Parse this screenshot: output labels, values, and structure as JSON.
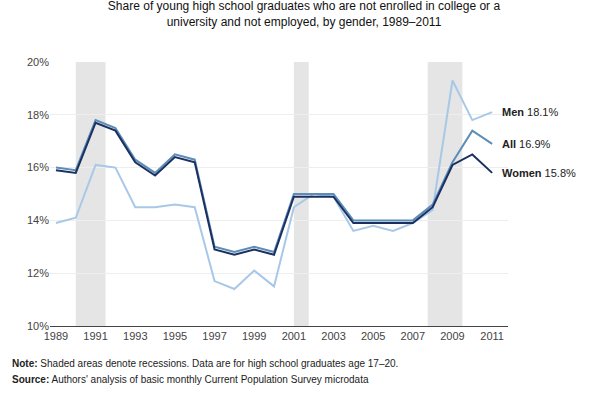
{
  "chart_data": {
    "type": "line",
    "title": "Share of young high school graduates who are not enrolled in college or a\nuniversity and not employed, by gender, 1989–2011",
    "x": [
      1989,
      1990,
      1991,
      1992,
      1993,
      1994,
      1995,
      1996,
      1997,
      1998,
      1999,
      2000,
      2001,
      2002,
      2003,
      2004,
      2005,
      2006,
      2007,
      2008,
      2009,
      2010,
      2011
    ],
    "series": [
      {
        "name": "Men",
        "color": "#a8c8e8",
        "values": [
          13.9,
          14.1,
          16.1,
          16.0,
          14.5,
          14.5,
          14.6,
          14.5,
          11.7,
          11.4,
          12.1,
          11.5,
          14.5,
          15.0,
          14.9,
          13.6,
          13.8,
          13.6,
          13.9,
          14.4,
          19.3,
          17.8,
          18.1
        ],
        "value_labels": [
          null,
          null,
          null,
          null,
          null,
          null,
          null,
          null,
          null,
          null,
          null,
          null,
          null,
          null,
          null,
          null,
          null,
          null,
          null,
          null,
          null,
          null,
          "18.1%"
        ]
      },
      {
        "name": "All",
        "color": "#5b8db8",
        "values": [
          16.0,
          15.9,
          17.8,
          17.5,
          16.3,
          15.8,
          16.5,
          16.3,
          13.0,
          12.8,
          13.0,
          12.8,
          15.0,
          15.0,
          15.0,
          14.0,
          14.0,
          14.0,
          14.0,
          14.6,
          16.2,
          17.4,
          16.9
        ],
        "value_labels": [
          null,
          null,
          null,
          null,
          null,
          null,
          null,
          null,
          null,
          null,
          null,
          null,
          null,
          null,
          null,
          null,
          null,
          null,
          null,
          null,
          null,
          null,
          "16.9%"
        ]
      },
      {
        "name": "Women",
        "color": "#1c3060",
        "values": [
          15.9,
          15.8,
          17.7,
          17.4,
          16.2,
          15.7,
          16.4,
          16.2,
          12.9,
          12.7,
          12.9,
          12.7,
          14.9,
          14.9,
          14.9,
          13.9,
          13.9,
          13.9,
          13.9,
          14.5,
          16.1,
          16.5,
          15.8
        ],
        "value_labels": [
          null,
          null,
          null,
          null,
          null,
          null,
          null,
          null,
          null,
          null,
          null,
          null,
          null,
          null,
          null,
          null,
          null,
          null,
          null,
          null,
          null,
          null,
          "15.8%"
        ]
      }
    ],
    "recessions": [
      [
        1990.0,
        1991.5
      ],
      [
        2001.0,
        2001.75
      ],
      [
        2007.75,
        2009.5
      ]
    ],
    "recession_color": "#e5e5e5",
    "xlim": [
      1988.7,
      2011.8
    ],
    "xticks": [
      1989,
      1991,
      1993,
      1995,
      1997,
      1999,
      2001,
      2003,
      2005,
      2007,
      2009,
      2011
    ],
    "ylim": [
      10,
      20
    ],
    "yticks": [
      {
        "value": 10,
        "label": "10%"
      },
      {
        "value": 12,
        "label": "12%"
      },
      {
        "value": 14,
        "label": "14%"
      },
      {
        "value": 16,
        "label": "16%"
      },
      {
        "value": 18,
        "label": "18%"
      },
      {
        "value": 20,
        "label": "20%"
      }
    ],
    "grid": true,
    "notes": [
      {
        "label": "Note:",
        "text": "Shaded areas denote recessions. Data are for high school graduates age 17–20."
      },
      {
        "label": "Source:",
        "text": "Authors' analysis of basic monthly Current Population Survey microdata"
      }
    ]
  }
}
